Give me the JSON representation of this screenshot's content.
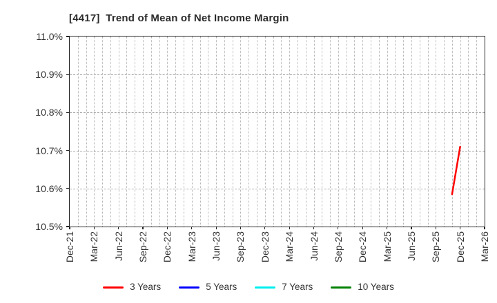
{
  "figure": {
    "background": "#ffffff",
    "title": "[4417]  Trend of Mean of Net Income Margin"
  },
  "chart_data": {
    "type": "line",
    "title": "[4417]  Trend of Mean of Net Income Margin",
    "grid": true,
    "x_axis": {
      "start": "Dec-21",
      "end": "Mar-26",
      "minor_gridline_interval": "monthly",
      "tick_labels": [
        "Dec-21",
        "Mar-22",
        "Jun-22",
        "Sep-22",
        "Dec-22",
        "Mar-23",
        "Jun-23",
        "Sep-23",
        "Dec-23",
        "Mar-24",
        "Jun-24",
        "Sep-24",
        "Dec-24",
        "Mar-25",
        "Jun-25",
        "Sep-25",
        "Dec-25",
        "Mar-26"
      ]
    },
    "y_axis": {
      "unit": "%",
      "min": 10.5,
      "max": 11.0,
      "tick_step": 0.1,
      "tick_labels": [
        "11.0%",
        "10.9%",
        "10.8%",
        "10.7%",
        "10.6%",
        "10.5%"
      ]
    },
    "series": [
      {
        "name": "3 Years",
        "color": "#ff0000",
        "x": [
          "Nov-25",
          "Dec-25"
        ],
        "y": [
          10.585,
          10.71
        ]
      },
      {
        "name": "5 Years",
        "color": "#0000ff",
        "x": [],
        "y": []
      },
      {
        "name": "7 Years",
        "color": "#00eeee",
        "x": [],
        "y": []
      },
      {
        "name": "10 Years",
        "color": "#008000",
        "x": [],
        "y": []
      }
    ],
    "legend": {
      "position": "bottom",
      "items": [
        "3 Years",
        "5 Years",
        "7 Years",
        "10 Years"
      ]
    }
  },
  "colors": {
    "axis_border": "#262626",
    "vertical_grid": "#b4b4b4",
    "horizontal_grid": "#ababab",
    "tick_text": "#333333",
    "title_text": "#2b2b2b"
  }
}
